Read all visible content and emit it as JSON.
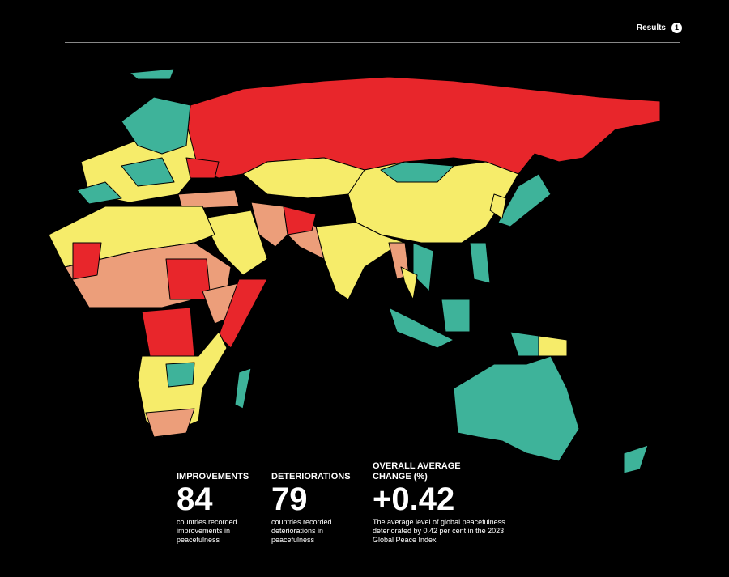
{
  "header": {
    "section": "Results",
    "page": "1"
  },
  "stats": [
    {
      "label": "IMPROVEMENTS",
      "value": 84,
      "description": "countries recorded improvements in peacefulness"
    },
    {
      "label": "DETERIORATIONS",
      "value": 79,
      "description": "countries recorded deteriorations in peacefulness"
    },
    {
      "label": "OVERALL AVERAGE CHANGE (%)",
      "value": "+0.42",
      "description": "The average level of global peacefulness deteriorated by 0.42 per cent in the 2023 Global Peace Index"
    }
  ]
}
